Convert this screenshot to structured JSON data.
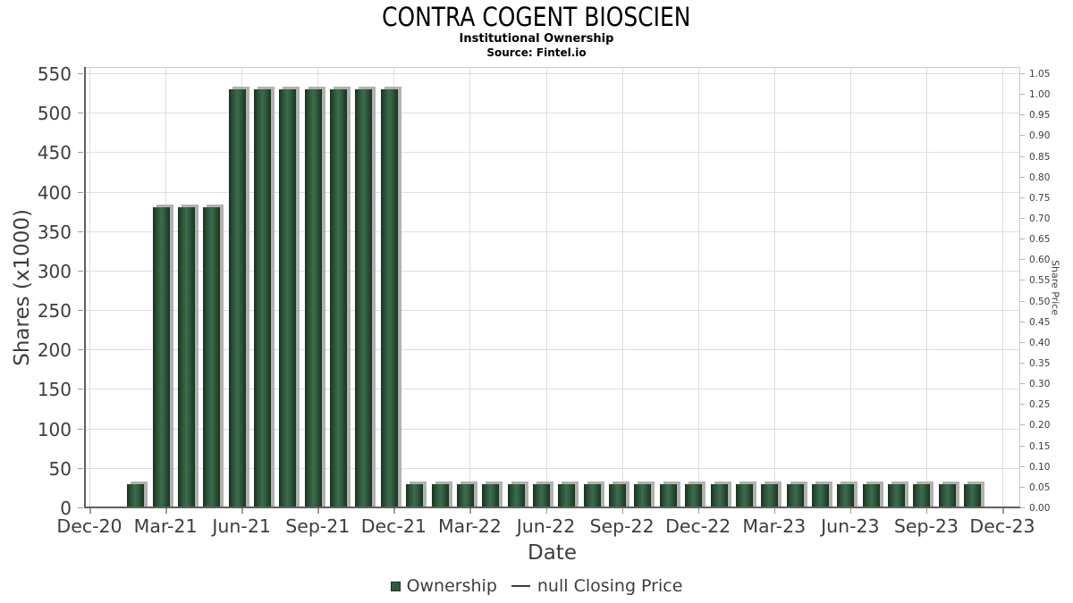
{
  "chart_data": {
    "type": "bar",
    "title": "CONTRA COGENT BIOSCIEN",
    "subtitle": "Institutional Ownership",
    "source": "Source: Fintel.io",
    "xlabel": "Date",
    "ylabel_left": "Shares (x1000)",
    "ylabel_right": "Share Price",
    "x_tick_labels": [
      "Dec-20",
      "Mar-21",
      "Jun-21",
      "Sep-21",
      "Dec-21",
      "Mar-22",
      "Jun-22",
      "Sep-22",
      "Dec-22",
      "Mar-23",
      "Jun-23",
      "Sep-23",
      "Dec-23"
    ],
    "x_tick_month_step": 3,
    "x_months_span": 36,
    "left_axis": {
      "min": 0,
      "max": 550,
      "step": 50,
      "ticks": [
        0,
        50,
        100,
        150,
        200,
        250,
        300,
        350,
        400,
        450,
        500,
        550
      ]
    },
    "right_axis": {
      "min": 0.0,
      "max": 1.05,
      "step": 0.05,
      "tick_labels": [
        "0.00",
        "0.05",
        "0.10",
        "0.15",
        "0.20",
        "0.25",
        "0.30",
        "0.35",
        "0.40",
        "0.45",
        "0.50",
        "0.55",
        "0.60",
        "0.65",
        "0.70",
        "0.75",
        "0.80",
        "0.85",
        "0.90",
        "0.95",
        "1.00",
        "1.05"
      ]
    },
    "grid": true,
    "legend_position": "bottom-center",
    "series": [
      {
        "name": "Ownership",
        "type": "bar",
        "points": [
          [
            2,
            "Feb-21",
            30
          ],
          [
            3,
            "Mar-21",
            380
          ],
          [
            4,
            "Apr-21",
            380
          ],
          [
            5,
            "May-21",
            380
          ],
          [
            6,
            "Jun-21",
            530
          ],
          [
            7,
            "Jul-21",
            530
          ],
          [
            8,
            "Aug-21",
            530
          ],
          [
            9,
            "Sep-21",
            530
          ],
          [
            10,
            "Oct-21",
            530
          ],
          [
            11,
            "Nov-21",
            530
          ],
          [
            12,
            "Dec-21",
            530
          ],
          [
            13,
            "Jan-22",
            30
          ],
          [
            14,
            "Feb-22",
            30
          ],
          [
            15,
            "Mar-22",
            30
          ],
          [
            16,
            "Apr-22",
            30
          ],
          [
            17,
            "May-22",
            30
          ],
          [
            18,
            "Jun-22",
            30
          ],
          [
            19,
            "Jul-22",
            30
          ],
          [
            20,
            "Aug-22",
            30
          ],
          [
            21,
            "Sep-22",
            30
          ],
          [
            22,
            "Oct-22",
            30
          ],
          [
            23,
            "Nov-22",
            30
          ],
          [
            24,
            "Dec-22",
            30
          ],
          [
            25,
            "Jan-23",
            30
          ],
          [
            26,
            "Feb-23",
            30
          ],
          [
            27,
            "Mar-23",
            30
          ],
          [
            28,
            "Apr-23",
            30
          ],
          [
            29,
            "May-23",
            30
          ],
          [
            30,
            "Jun-23",
            30
          ],
          [
            31,
            "Jul-23",
            30
          ],
          [
            32,
            "Aug-23",
            30
          ],
          [
            33,
            "Sep-23",
            30
          ],
          [
            34,
            "Oct-23",
            30
          ],
          [
            35,
            "Nov-23",
            30
          ]
        ]
      },
      {
        "name": "null Closing Price",
        "type": "line",
        "points": []
      }
    ],
    "colors": {
      "bar_edge": "#18331f",
      "bar_mid": "#2e5a3c",
      "bar_hi": "#3d6b4b",
      "bar_shadow": "#a3a3a3",
      "grid": "#dedede",
      "spine_dark": "#606060",
      "spine_light": "#c9c9c9",
      "tick": "#3d3d3d",
      "legend_line": "#3d3d3d"
    }
  }
}
